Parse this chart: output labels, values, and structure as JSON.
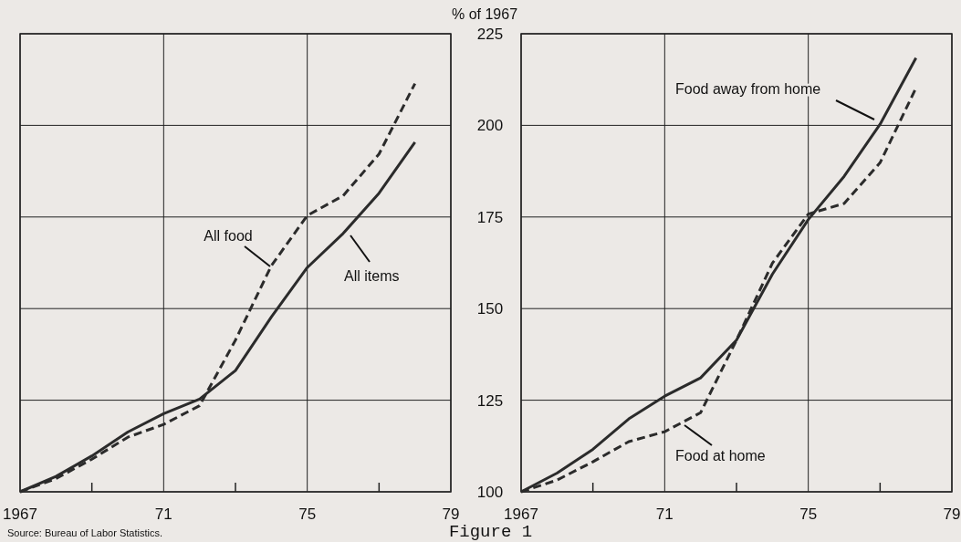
{
  "chart_data": [
    {
      "type": "line",
      "x": [
        1967,
        1968,
        1969,
        1970,
        1971,
        1972,
        1973,
        1974,
        1975,
        1976,
        1977,
        1978
      ],
      "series": [
        {
          "color": "#2b2b2b",
          "line_style": "solid",
          "values": [
            100,
            104.2,
            109.8,
            116.3,
            121.3,
            125.3,
            133.1,
            147.7,
            161.2,
            170.5,
            181.5,
            195.4
          ]
        },
        {
          "color": "#2b2b2b",
          "line_style": "dashed",
          "values": [
            100,
            103.6,
            108.9,
            114.9,
            118.4,
            123.5,
            141.4,
            161.7,
            175.4,
            180.8,
            192.2,
            211.4
          ]
        }
      ],
      "xlim": [
        1967,
        1979
      ],
      "xticks": [
        1967,
        {
          "value": 1969,
          "label": null
        },
        {
          "value": 1971,
          "label": "71"
        },
        {
          "value": 1973,
          "label": null
        },
        {
          "value": 1975,
          "label": "75"
        },
        {
          "value": 1977,
          "label": null
        },
        {
          "value": 1979,
          "label": "79"
        }
      ],
      "ylim": [
        100,
        225
      ],
      "yticks": [
        100,
        125,
        150,
        175,
        200,
        225
      ],
      "grid": true,
      "tick_labels": "x",
      "annotations": [
        "All food",
        "All items",
        "Source: Bureau of Labor Statistics."
      ]
    },
    {
      "type": "line",
      "x": [
        1967,
        1968,
        1969,
        1970,
        1971,
        1972,
        1973,
        1974,
        1975,
        1976,
        1977,
        1978
      ],
      "series": [
        {
          "color": "#2b2b2b",
          "line_style": "solid",
          "values": [
            100,
            105.1,
            111.6,
            119.9,
            126.1,
            131.1,
            141.4,
            159.4,
            174.3,
            186.1,
            200.3,
            218.4
          ]
        },
        {
          "color": "#2b2b2b",
          "line_style": "dashed",
          "values": [
            100,
            103.2,
            108.2,
            113.7,
            116.4,
            121.6,
            141.4,
            162.4,
            175.8,
            178.7,
            189.8,
            210.2
          ]
        }
      ],
      "xlim": [
        1967,
        1979
      ],
      "xticks": [
        1967,
        {
          "value": 1969,
          "label": null
        },
        {
          "value": 1971,
          "label": "71"
        },
        {
          "value": 1973,
          "label": null
        },
        {
          "value": 1975,
          "label": "75"
        },
        {
          "value": 1977,
          "label": null
        },
        {
          "value": 1979,
          "label": "79"
        }
      ],
      "ylim": [
        100,
        225
      ],
      "yticks": [
        100,
        125,
        150,
        175,
        200,
        225
      ],
      "grid": true,
      "ylabel": "% of 1967",
      "annotations": [
        "Food away from home",
        "Food at home",
        "Figure 1"
      ]
    }
  ]
}
